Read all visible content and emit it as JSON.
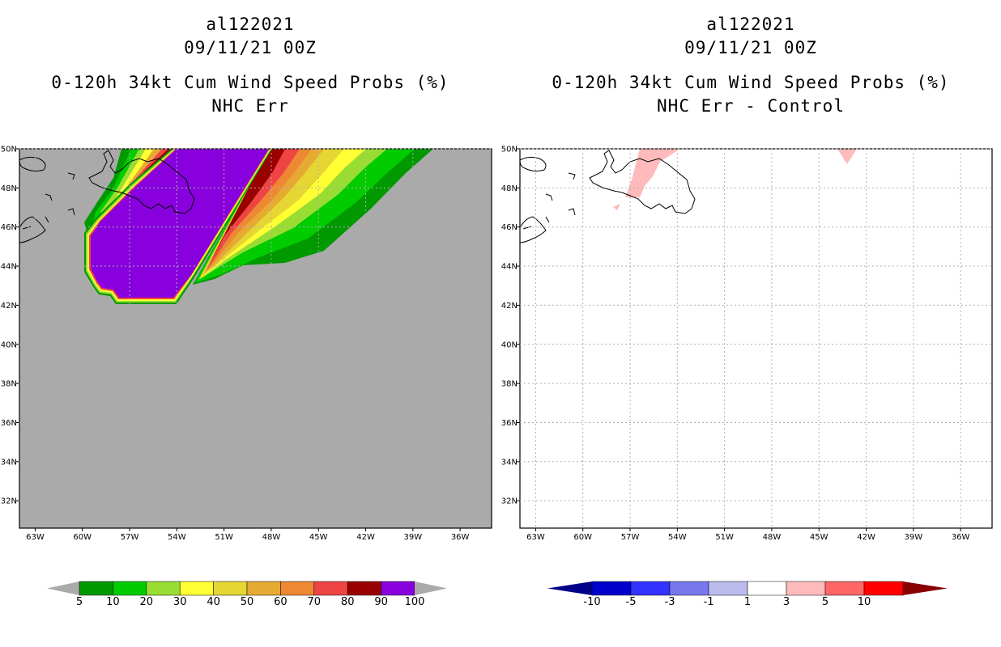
{
  "left_panel": {
    "storm_id": "al122021",
    "datetime": "09/11/21 00Z",
    "product": "0-120h 34kt Cum Wind Speed Probs (%)",
    "model": "NHC Err"
  },
  "right_panel": {
    "storm_id": "al122021",
    "datetime": "09/11/21 00Z",
    "product": "0-120h 34kt Cum Wind Speed Probs (%)",
    "model": "NHC Err - Control"
  },
  "map": {
    "lon_range": [
      -64,
      -34
    ],
    "lat_range": [
      30.6,
      50
    ],
    "lon_ticks": [
      "63W",
      "60W",
      "57W",
      "54W",
      "51W",
      "48W",
      "45W",
      "42W",
      "39W",
      "36W"
    ],
    "lat_ticks": [
      "50N",
      "48N",
      "46N",
      "44N",
      "42N",
      "40N",
      "38N",
      "36N",
      "34N",
      "32N"
    ],
    "grid_style": "dotted"
  },
  "left_colorbar": {
    "labels": [
      "5",
      "10",
      "20",
      "30",
      "40",
      "50",
      "60",
      "70",
      "80",
      "90",
      "100"
    ],
    "colors": [
      "#009900",
      "#00cc00",
      "#99dd33",
      "#ffff33",
      "#e6d633",
      "#e6aa33",
      "#ee8833",
      "#ee4444",
      "#990000",
      "#8800dd"
    ],
    "end_color": "#aaaaaa"
  },
  "right_colorbar": {
    "labels": [
      "-10",
      "-5",
      "-3",
      "-1",
      "1",
      "3",
      "5",
      "10"
    ],
    "colors": [
      "#0000cc",
      "#3333ff",
      "#7777ee",
      "#bbbbee",
      "#ffffff",
      "#ffbbbb",
      "#ff6666",
      "#ff0000"
    ],
    "low_end_color": "#000088",
    "high_end_color": "#880000"
  },
  "colors": {
    "ocean_background": "#aaaaaa",
    "land_outline": "#000000"
  }
}
